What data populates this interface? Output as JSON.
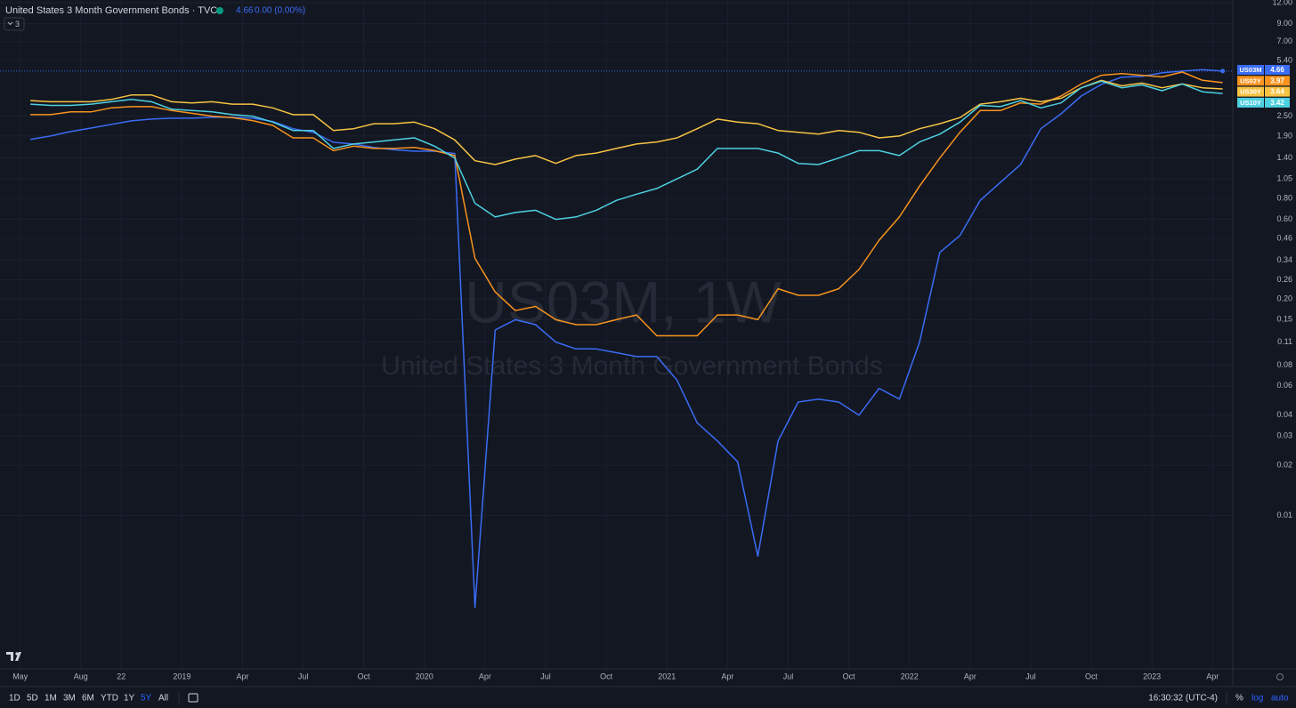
{
  "header": {
    "title": "United States 3 Month Government Bonds · TVC",
    "change": "0.00 (0.00%)",
    "indicators": 3
  },
  "chart_data": {
    "type": "line",
    "title": "US03M, 1W",
    "subtitle": "United States 3 Month Government Bonds",
    "log_scale": true,
    "grid": true,
    "x": [
      "2018-05",
      "2018-06",
      "2018-07",
      "2018-08",
      "2018-09",
      "2018-10",
      "2018-11",
      "2018-12",
      "2019-01",
      "2019-02",
      "2019-03",
      "2019-04",
      "2019-05",
      "2019-06",
      "2019-07",
      "2019-08",
      "2019-09",
      "2019-10",
      "2019-11",
      "2019-12",
      "2020-01",
      "2020-02",
      "2020-03",
      "2020-04",
      "2020-05",
      "2020-06",
      "2020-07",
      "2020-08",
      "2020-09",
      "2020-10",
      "2020-11",
      "2020-12",
      "2021-01",
      "2021-02",
      "2021-03",
      "2021-04",
      "2021-05",
      "2021-06",
      "2021-07",
      "2021-08",
      "2021-09",
      "2021-10",
      "2021-11",
      "2021-12",
      "2022-01",
      "2022-02",
      "2022-03",
      "2022-04",
      "2022-05",
      "2022-06",
      "2022-07",
      "2022-08",
      "2022-09",
      "2022-10",
      "2022-11",
      "2022-12",
      "2023-01",
      "2023-02",
      "2023-03",
      "2023-04"
    ],
    "xlim": [
      "2018-04",
      "2023-05"
    ],
    "xticks": [
      {
        "value": "2018-05",
        "label": "May"
      },
      {
        "value": "2018-08",
        "label": "Aug"
      },
      {
        "value": "2018-10",
        "label": "22"
      },
      {
        "value": "2019-01",
        "label": "2019"
      },
      {
        "value": "2019-04",
        "label": "Apr"
      },
      {
        "value": "2019-07",
        "label": "Jul"
      },
      {
        "value": "2019-10",
        "label": "Oct"
      },
      {
        "value": "2020-01",
        "label": "2020"
      },
      {
        "value": "2020-04",
        "label": "Apr"
      },
      {
        "value": "2020-07",
        "label": "Jul"
      },
      {
        "value": "2020-10",
        "label": "Oct"
      },
      {
        "value": "2021-01",
        "label": "2021"
      },
      {
        "value": "2021-04",
        "label": "Apr"
      },
      {
        "value": "2021-07",
        "label": "Jul"
      },
      {
        "value": "2021-10",
        "label": "Oct"
      },
      {
        "value": "2022-01",
        "label": "2022"
      },
      {
        "value": "2022-04",
        "label": "Apr"
      },
      {
        "value": "2022-07",
        "label": "Jul"
      },
      {
        "value": "2022-10",
        "label": "Oct"
      },
      {
        "value": "2023-01",
        "label": "2023"
      },
      {
        "value": "2023-04",
        "label": "Apr"
      }
    ],
    "ylim": [
      0.0012,
      12.45
    ],
    "yticks": [
      {
        "value": 12,
        "label": "12.00"
      },
      {
        "value": 9,
        "label": "9.00"
      },
      {
        "value": 7,
        "label": "7.00"
      },
      {
        "value": 5.4,
        "label": "5.40"
      },
      {
        "value": 2.5,
        "label": "2.50"
      },
      {
        "value": 1.9,
        "label": "1.90"
      },
      {
        "value": 1.4,
        "label": "1.40"
      },
      {
        "value": 1.05,
        "label": "1.05"
      },
      {
        "value": 0.8,
        "label": "0.80"
      },
      {
        "value": 0.6,
        "label": "0.60"
      },
      {
        "value": 0.46,
        "label": "0.46"
      },
      {
        "value": 0.34,
        "label": "0.34"
      },
      {
        "value": 0.26,
        "label": "0.26"
      },
      {
        "value": 0.2,
        "label": "0.20"
      },
      {
        "value": 0.15,
        "label": "0.15"
      },
      {
        "value": 0.11,
        "label": "0.11"
      },
      {
        "value": 0.08,
        "label": "0.08"
      },
      {
        "value": 0.06,
        "label": "0.06"
      },
      {
        "value": 0.04,
        "label": "0.04"
      },
      {
        "value": 0.03,
        "label": "0.03"
      },
      {
        "value": 0.02,
        "label": "0.02"
      },
      {
        "value": 0.01,
        "label": "0.01"
      }
    ],
    "series": [
      {
        "name": "US03M",
        "color": "#3a6cf4",
        "values": [
          1.81,
          1.9,
          2.02,
          2.12,
          2.23,
          2.34,
          2.4,
          2.43,
          2.43,
          2.46,
          2.46,
          2.43,
          2.32,
          2.1,
          2.0,
          1.74,
          1.7,
          1.62,
          1.57,
          1.54,
          1.54,
          1.49,
          0.0028,
          0.13,
          0.15,
          0.14,
          0.11,
          0.1,
          0.1,
          0.095,
          0.09,
          0.09,
          0.065,
          0.036,
          0.028,
          0.021,
          0.0057,
          0.028,
          0.048,
          0.05,
          0.048,
          0.04,
          0.058,
          0.05,
          0.11,
          0.38,
          0.48,
          0.78,
          1.0,
          1.28,
          2.1,
          2.58,
          3.3,
          3.88,
          4.28,
          4.33,
          4.55,
          4.66,
          4.75,
          4.66
        ]
      },
      {
        "name": "US02Y",
        "color": "#f7931e",
        "values": [
          2.55,
          2.55,
          2.65,
          2.65,
          2.8,
          2.85,
          2.85,
          2.7,
          2.6,
          2.5,
          2.45,
          2.35,
          2.2,
          1.85,
          1.85,
          1.55,
          1.65,
          1.6,
          1.6,
          1.62,
          1.55,
          1.45,
          0.35,
          0.22,
          0.17,
          0.18,
          0.15,
          0.14,
          0.14,
          0.15,
          0.16,
          0.12,
          0.12,
          0.12,
          0.16,
          0.16,
          0.15,
          0.23,
          0.21,
          0.21,
          0.23,
          0.3,
          0.45,
          0.62,
          0.95,
          1.4,
          2.0,
          2.7,
          2.7,
          3.0,
          2.95,
          3.3,
          3.9,
          4.4,
          4.5,
          4.4,
          4.3,
          4.6,
          4.1,
          3.97
        ]
      },
      {
        "name": "US30Y",
        "color": "#f6c343",
        "values": [
          3.1,
          3.05,
          3.05,
          3.05,
          3.15,
          3.35,
          3.35,
          3.05,
          3.0,
          3.05,
          2.95,
          2.95,
          2.8,
          2.55,
          2.55,
          2.05,
          2.1,
          2.25,
          2.25,
          2.3,
          2.1,
          1.8,
          1.35,
          1.28,
          1.38,
          1.45,
          1.3,
          1.45,
          1.5,
          1.6,
          1.7,
          1.75,
          1.85,
          2.1,
          2.4,
          2.3,
          2.25,
          2.05,
          2.0,
          1.95,
          2.05,
          2.0,
          1.85,
          1.9,
          2.1,
          2.25,
          2.45,
          2.95,
          3.05,
          3.2,
          3.05,
          3.2,
          3.7,
          4.1,
          3.8,
          3.95,
          3.7,
          3.9,
          3.7,
          3.64
        ]
      },
      {
        "name": "US10Y",
        "color": "#4dd0e1",
        "values": [
          2.95,
          2.9,
          2.9,
          2.95,
          3.05,
          3.15,
          3.05,
          2.75,
          2.7,
          2.65,
          2.55,
          2.5,
          2.3,
          2.05,
          2.05,
          1.6,
          1.7,
          1.75,
          1.8,
          1.85,
          1.65,
          1.4,
          0.75,
          0.62,
          0.66,
          0.68,
          0.6,
          0.62,
          0.68,
          0.78,
          0.85,
          0.92,
          1.05,
          1.2,
          1.6,
          1.6,
          1.6,
          1.5,
          1.3,
          1.28,
          1.4,
          1.55,
          1.55,
          1.45,
          1.75,
          1.95,
          2.3,
          2.9,
          2.85,
          3.1,
          2.8,
          3.0,
          3.7,
          4.05,
          3.7,
          3.85,
          3.55,
          3.9,
          3.5,
          3.42
        ]
      }
    ]
  },
  "toolbar": {
    "ranges": [
      "1D",
      "5D",
      "1M",
      "3M",
      "6M",
      "YTD",
      "1Y",
      "5Y",
      "All"
    ],
    "time": "16:30:32 (UTC-4)",
    "scale_options": [
      "%",
      "log",
      "auto"
    ]
  }
}
